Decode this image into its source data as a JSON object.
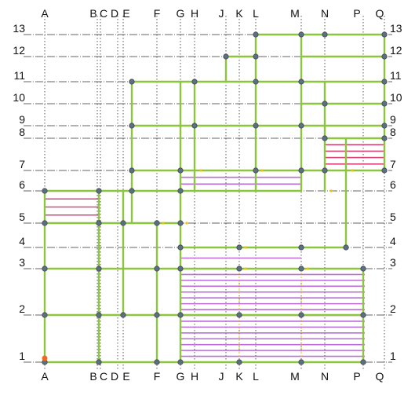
{
  "grid": {
    "columns": [
      "A",
      "B",
      "C",
      "D",
      "E",
      "F",
      "G",
      "H",
      "J",
      "K",
      "L",
      "M",
      "N",
      "P",
      "Q"
    ],
    "rows": [
      "1",
      "2",
      "3",
      "4",
      "5",
      "6",
      "7",
      "8",
      "9",
      "10",
      "11",
      "12",
      "13"
    ]
  },
  "colors": {
    "gridline": "#333333",
    "beam": "#8cc63f",
    "joist": "#b45cd6",
    "joist_red": "#d6336c",
    "node": "#5f6f80",
    "marker": "#f2c200"
  }
}
